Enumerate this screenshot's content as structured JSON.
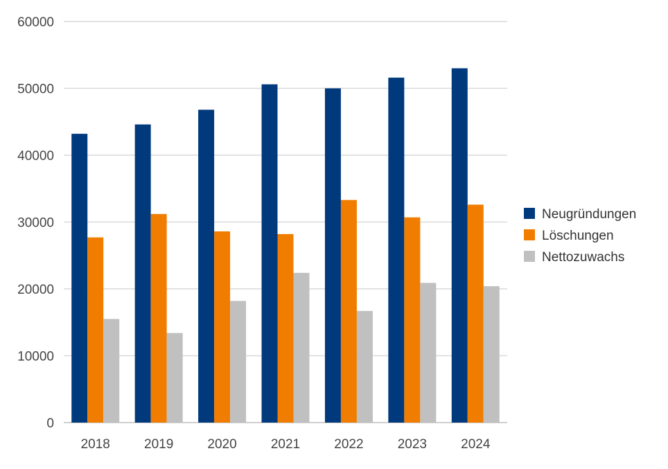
{
  "chart_data": {
    "type": "bar",
    "title": "",
    "xlabel": "",
    "ylabel": "",
    "categories": [
      "2018",
      "2019",
      "2020",
      "2021",
      "2022",
      "2023",
      "2024"
    ],
    "series": [
      {
        "name": "Neugründungen",
        "color": "#003a7d",
        "values": [
          43200,
          44600,
          46800,
          50600,
          50000,
          51600,
          53000
        ]
      },
      {
        "name": "Löschungen",
        "color": "#f07d00",
        "values": [
          27700,
          31200,
          28600,
          28200,
          33300,
          30700,
          32600
        ]
      },
      {
        "name": "Nettozuwachs",
        "color": "#c0c0c0",
        "values": [
          15500,
          13400,
          18200,
          22400,
          16700,
          20900,
          20400
        ]
      }
    ],
    "ylim": [
      0,
      60000
    ],
    "yticks": [
      "0",
      "10000",
      "20000",
      "30000",
      "40000",
      "50000",
      "60000"
    ],
    "grid": true,
    "legend_position": "right"
  }
}
